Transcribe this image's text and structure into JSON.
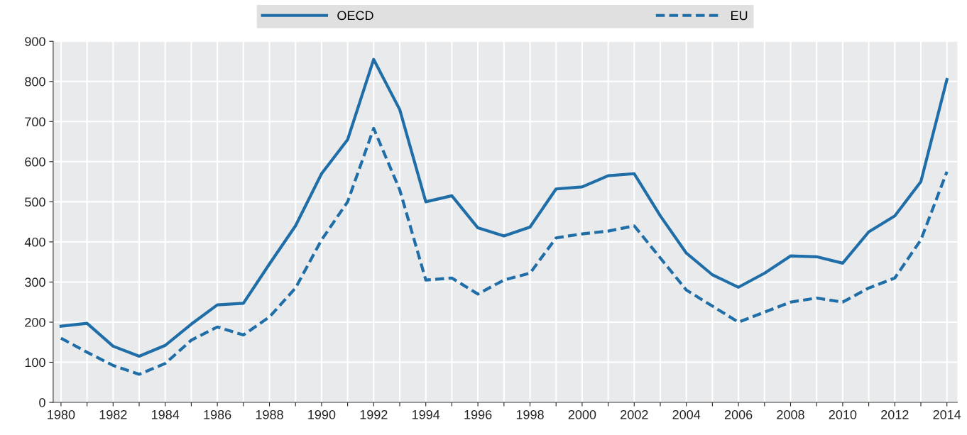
{
  "chart_data": {
    "type": "line",
    "x": [
      1980,
      1981,
      1982,
      1983,
      1984,
      1985,
      1986,
      1987,
      1988,
      1989,
      1990,
      1991,
      1992,
      1993,
      1994,
      1995,
      1996,
      1997,
      1998,
      1999,
      2000,
      2001,
      2002,
      2003,
      2004,
      2005,
      2006,
      2007,
      2008,
      2009,
      2010,
      2011,
      2012,
      2013,
      2014
    ],
    "series": [
      {
        "name": "OECD",
        "color": "#1f6ea8",
        "line_style": "solid",
        "values": [
          190,
          197,
          140,
          115,
          142,
          195,
          243,
          247,
          345,
          440,
          570,
          655,
          855,
          730,
          500,
          515,
          435,
          415,
          437,
          532,
          537,
          565,
          570,
          465,
          372,
          318,
          287,
          322,
          365,
          363,
          347,
          425,
          465,
          550,
          805
        ]
      },
      {
        "name": "EU",
        "color": "#1f6ea8",
        "line_style": "dashed",
        "values": [
          160,
          125,
          92,
          70,
          97,
          155,
          188,
          168,
          213,
          285,
          405,
          500,
          683,
          530,
          305,
          310,
          270,
          305,
          322,
          410,
          420,
          427,
          440,
          360,
          280,
          240,
          200,
          225,
          250,
          260,
          250,
          285,
          310,
          405,
          575
        ]
      }
    ],
    "xlim": [
      1979.7,
      2014.4
    ],
    "xticks": [
      1980,
      {
        "value": 1981,
        "label": null
      },
      1982,
      {
        "value": 1983,
        "label": null
      },
      1984,
      {
        "value": 1985,
        "label": null
      },
      1986,
      {
        "value": 1987,
        "label": null
      },
      1988,
      {
        "value": 1989,
        "label": null
      },
      1990,
      {
        "value": 1991,
        "label": null
      },
      1992,
      {
        "value": 1993,
        "label": null
      },
      1994,
      {
        "value": 1995,
        "label": null
      },
      1996,
      {
        "value": 1997,
        "label": null
      },
      1998,
      {
        "value": 1999,
        "label": null
      },
      2000,
      {
        "value": 2001,
        "label": null
      },
      2002,
      {
        "value": 2003,
        "label": null
      },
      2004,
      {
        "value": 2005,
        "label": null
      },
      2006,
      {
        "value": 2007,
        "label": null
      },
      2008,
      {
        "value": 2009,
        "label": null
      },
      2010,
      {
        "value": 2011,
        "label": null
      },
      2012,
      {
        "value": 2013,
        "label": null
      },
      2014
    ],
    "ylim": [
      0,
      900
    ],
    "yticks": [
      0,
      100,
      200,
      300,
      400,
      500,
      600,
      700,
      800,
      900
    ],
    "grid": true,
    "legend": "top",
    "marker": "none"
  }
}
